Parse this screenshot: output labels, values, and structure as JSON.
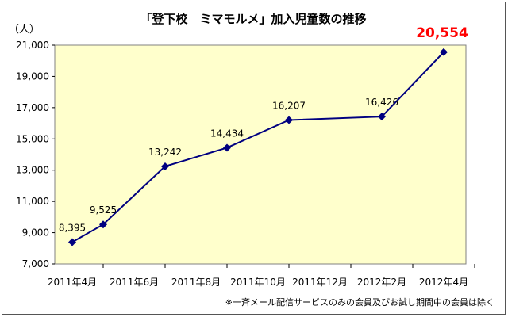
{
  "chart_data": {
    "type": "line",
    "title": "「登下校　ミマモルメ」加入児童数の推移",
    "ylabel": "（人）",
    "xlabel": "",
    "ylim": [
      7000,
      21000
    ],
    "yticks": [
      "7,000",
      "9,000",
      "11,000",
      "13,000",
      "15,000",
      "17,000",
      "19,000",
      "21,000"
    ],
    "xtick_labels": [
      "2011年4月",
      "2011年6月",
      "2011年8月",
      "2011年10月",
      "2011年12月",
      "2012年2月",
      "2012年4月"
    ],
    "x": [
      "2011-04",
      "2011-05",
      "2011-07",
      "2011-09",
      "2011-11",
      "2012-02",
      "2012-04"
    ],
    "series": [
      {
        "values": [
          8395,
          9525,
          13242,
          14434,
          16207,
          16426,
          20554
        ],
        "labels": [
          "8,395",
          "9,525",
          "13,242",
          "14,434",
          "16,207",
          "16,426",
          "20,554"
        ],
        "color": "#000080"
      }
    ],
    "highlight_color": "#ff0000",
    "plot_background": "#ffffcc",
    "grid": false,
    "note": "※一斉メール配信サービスのみの会員及びお試し期間中の会員は除く"
  }
}
